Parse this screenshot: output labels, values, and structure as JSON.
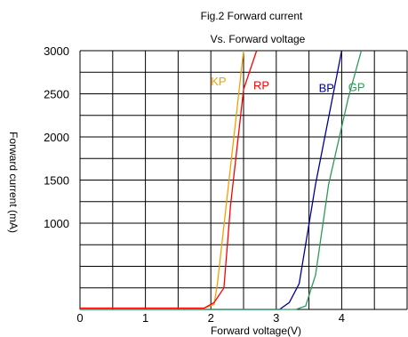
{
  "chart_data": {
    "type": "line",
    "title": "Fig.2 Forward current",
    "subtitle": "Vs. Forward voltage",
    "xlabel": "Forward voltage(V)",
    "ylabel": "Forward current (mA)",
    "xlim": [
      0,
      5
    ],
    "ylim": [
      0,
      3000
    ],
    "grid": true,
    "x_ticks": [
      0,
      1,
      2,
      3,
      4
    ],
    "y_ticks": [
      1000,
      1500,
      2000,
      2500,
      3000
    ],
    "series": [
      {
        "name": "KP",
        "color": "#f5a000",
        "points": [
          [
            0,
            15
          ],
          [
            1.9,
            15
          ],
          [
            2.05,
            60
          ],
          [
            2.1,
            300
          ],
          [
            2.5,
            3000
          ]
        ]
      },
      {
        "name": "RP",
        "color": "#ff0000",
        "points": [
          [
            0,
            15
          ],
          [
            1.9,
            15
          ],
          [
            2.05,
            80
          ],
          [
            2.2,
            250
          ],
          [
            2.3,
            1200
          ],
          [
            2.5,
            2550
          ],
          [
            2.7,
            3000
          ]
        ]
      },
      {
        "name": "BP",
        "color": "#000090",
        "points": [
          [
            0,
            0
          ],
          [
            3.05,
            0
          ],
          [
            3.2,
            80
          ],
          [
            3.35,
            300
          ],
          [
            3.6,
            1450
          ],
          [
            4.0,
            3000
          ]
        ]
      },
      {
        "name": "GP",
        "color": "#2e9a5a",
        "points": [
          [
            0,
            0
          ],
          [
            3.3,
            0
          ],
          [
            3.45,
            40
          ],
          [
            3.6,
            400
          ],
          [
            3.8,
            1450
          ],
          [
            4.1,
            2450
          ],
          [
            4.3,
            3000
          ]
        ]
      }
    ]
  }
}
